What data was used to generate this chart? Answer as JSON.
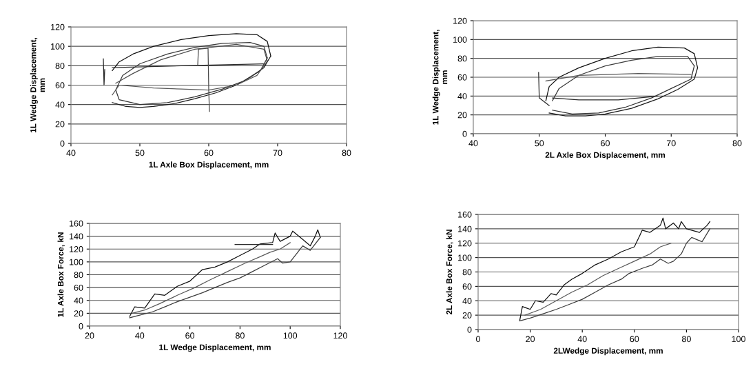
{
  "chart_data": [
    {
      "type": "line",
      "xlabel": "1L Axle Box Displacement, mm",
      "ylabel": "1L Wedge Displacement,\nmm",
      "xlim": [
        40,
        80
      ],
      "xticks": [
        40,
        50,
        60,
        70,
        80
      ],
      "ylim": [
        0,
        120
      ],
      "yticks": [
        0,
        20,
        40,
        60,
        80,
        100,
        120
      ],
      "grid": "y",
      "legend": false,
      "series": [
        {
          "color": "#111111",
          "x": [
            46,
            47,
            49,
            52,
            56,
            60,
            64,
            67,
            68.5,
            69
          ],
          "values": [
            75,
            84,
            92,
            100,
            107,
            111,
            113,
            112,
            105,
            90
          ]
        },
        {
          "color": "#1c1c1c",
          "x": [
            46,
            48,
            50,
            52,
            55,
            58,
            61,
            64,
            66,
            68,
            69
          ],
          "values": [
            42,
            38,
            37,
            38,
            41,
            46,
            52,
            60,
            68,
            78,
            90
          ]
        },
        {
          "color": "#3c3c3c",
          "x": [
            46.5,
            47.5,
            50,
            54,
            58,
            62,
            66,
            68,
            68.5
          ],
          "values": [
            55,
            70,
            82,
            92,
            99,
            103,
            104,
            100,
            88
          ]
        },
        {
          "color": "#333333",
          "x": [
            46.5,
            47,
            50,
            54,
            58,
            62,
            65,
            67.5,
            68.5
          ],
          "values": [
            55,
            45,
            40,
            42,
            48,
            56,
            64,
            75,
            88
          ]
        },
        {
          "color": "#5a5a5a",
          "x": [
            46,
            47,
            52,
            56,
            60,
            64,
            67,
            68.5
          ],
          "values": [
            50,
            60,
            57,
            56,
            55,
            60,
            70,
            85
          ]
        },
        {
          "color": "#505050",
          "x": [
            46.5,
            49,
            53,
            58,
            64,
            68,
            68.5
          ],
          "values": [
            62,
            72,
            86,
            97,
            102,
            97,
            85
          ]
        },
        {
          "color": "#2a2a2a",
          "x": [
            46,
            56,
            68
          ],
          "values": [
            78,
            80,
            82
          ]
        },
        {
          "color": "#262626",
          "x": [
            44.7,
            44.8,
            44.9
          ],
          "values": [
            87,
            60,
            76
          ]
        },
        {
          "color": "#484848",
          "x": [
            58.4,
            58.5,
            59.9,
            60,
            60.1
          ],
          "values": [
            80,
            97,
            98,
            55,
            33
          ]
        }
      ]
    },
    {
      "type": "line",
      "xlabel": "2L Axle Box Displacement, mm",
      "ylabel": "1L Wedge Displacement,\nmm",
      "xlim": [
        40,
        80
      ],
      "xticks": [
        40,
        50,
        60,
        70,
        80
      ],
      "ylim": [
        0,
        120
      ],
      "yticks": [
        0,
        20,
        40,
        60,
        80,
        100,
        120
      ],
      "grid": "y",
      "legend": false,
      "series": [
        {
          "color": "#111111",
          "x": [
            51,
            51.5,
            53,
            56,
            60,
            64,
            68,
            72,
            73.5,
            74
          ],
          "values": [
            35,
            50,
            60,
            70,
            80,
            88,
            92,
            91,
            85,
            70
          ]
        },
        {
          "color": "#1c1c1c",
          "x": [
            51.5,
            54,
            57,
            60,
            64,
            68,
            71,
            73.5,
            74
          ],
          "values": [
            22,
            19,
            19,
            21,
            27,
            37,
            47,
            58,
            70
          ]
        },
        {
          "color": "#3c3c3c",
          "x": [
            52,
            53,
            56,
            60,
            64,
            68,
            72.5,
            73.5
          ],
          "values": [
            35,
            48,
            62,
            72,
            78,
            82,
            82,
            72
          ]
        },
        {
          "color": "#333333",
          "x": [
            52,
            55,
            59,
            63,
            67,
            70,
            73,
            73.5
          ],
          "values": [
            25,
            21,
            22,
            28,
            38,
            48,
            58,
            72
          ]
        },
        {
          "color": "#5a5a5a",
          "x": [
            51,
            56,
            65,
            73
          ],
          "values": [
            56,
            62,
            64,
            63
          ]
        },
        {
          "color": "#2a2a2a",
          "x": [
            52,
            56,
            62,
            68
          ],
          "values": [
            38,
            36,
            36,
            40
          ]
        },
        {
          "color": "#262626",
          "x": [
            49.9,
            50,
            51.5
          ],
          "values": [
            65,
            38,
            30
          ]
        }
      ]
    },
    {
      "type": "line",
      "xlabel": "1L Wedge Displacement, mm",
      "ylabel": "1L Axle Box Force, kN",
      "xlim": [
        20,
        120
      ],
      "xticks": [
        20,
        40,
        60,
        80,
        100,
        120
      ],
      "ylim": [
        0,
        160
      ],
      "yticks": [
        0,
        20,
        40,
        60,
        80,
        100,
        120,
        140,
        160
      ],
      "grid": "y",
      "legend": false,
      "series": [
        {
          "color": "#111111",
          "x": [
            36,
            38,
            42,
            46,
            50,
            55,
            60,
            65,
            70,
            75,
            80,
            85,
            88,
            93,
            94,
            96,
            100,
            101,
            105,
            108,
            110,
            111,
            112
          ],
          "values": [
            15,
            30,
            28,
            50,
            48,
            62,
            70,
            88,
            92,
            100,
            110,
            120,
            128,
            130,
            145,
            132,
            140,
            148,
            135,
            125,
            140,
            150,
            138
          ]
        },
        {
          "color": "#3c3c3c",
          "x": [
            36,
            40,
            45,
            50,
            55,
            60,
            65,
            70,
            75,
            80,
            85,
            90,
            95,
            97,
            100,
            102,
            105,
            108,
            112
          ],
          "values": [
            13,
            17,
            22,
            30,
            38,
            45,
            52,
            60,
            68,
            75,
            85,
            95,
            105,
            98,
            100,
            110,
            125,
            118,
            138
          ]
        },
        {
          "color": "#5a5a5a",
          "x": [
            37,
            42,
            48,
            55,
            62,
            68,
            75,
            82,
            88,
            92,
            96,
            100
          ],
          "values": [
            20,
            25,
            35,
            48,
            60,
            72,
            85,
            98,
            108,
            115,
            120,
            130
          ]
        },
        {
          "color": "#2a2a2a",
          "x": [
            78,
            93
          ],
          "values": [
            127,
            127
          ]
        }
      ]
    },
    {
      "type": "line",
      "xlabel": "2LWedge Displacement, mm",
      "ylabel": "2L Axle Box Force, kN",
      "xlim": [
        0,
        100
      ],
      "xticks": [
        0,
        20,
        40,
        60,
        80,
        100
      ],
      "ylim": [
        0,
        160
      ],
      "yticks": [
        0,
        20,
        40,
        60,
        80,
        100,
        120,
        140,
        160
      ],
      "grid": "y",
      "legend": false,
      "series": [
        {
          "color": "#111111",
          "x": [
            16,
            17,
            20,
            22,
            25,
            28,
            30,
            33,
            36,
            40,
            45,
            50,
            55,
            60,
            62,
            63,
            66,
            70,
            71,
            72,
            75,
            77,
            78,
            80,
            85,
            88,
            89
          ],
          "values": [
            13,
            32,
            28,
            40,
            38,
            50,
            48,
            62,
            70,
            78,
            90,
            98,
            108,
            115,
            130,
            138,
            135,
            145,
            155,
            140,
            148,
            140,
            150,
            140,
            135,
            145,
            150
          ]
        },
        {
          "color": "#3c3c3c",
          "x": [
            16,
            20,
            25,
            30,
            35,
            40,
            45,
            50,
            55,
            58,
            63,
            67,
            70,
            73,
            75,
            78,
            80,
            82,
            86,
            89
          ],
          "values": [
            12,
            16,
            22,
            28,
            35,
            42,
            52,
            62,
            70,
            78,
            85,
            90,
            98,
            92,
            95,
            105,
            120,
            128,
            122,
            140
          ]
        },
        {
          "color": "#5a5a5a",
          "x": [
            18,
            24,
            30,
            36,
            42,
            48,
            54,
            60,
            66,
            70,
            74
          ],
          "values": [
            20,
            28,
            40,
            52,
            62,
            75,
            85,
            95,
            105,
            115,
            120
          ]
        }
      ]
    }
  ]
}
